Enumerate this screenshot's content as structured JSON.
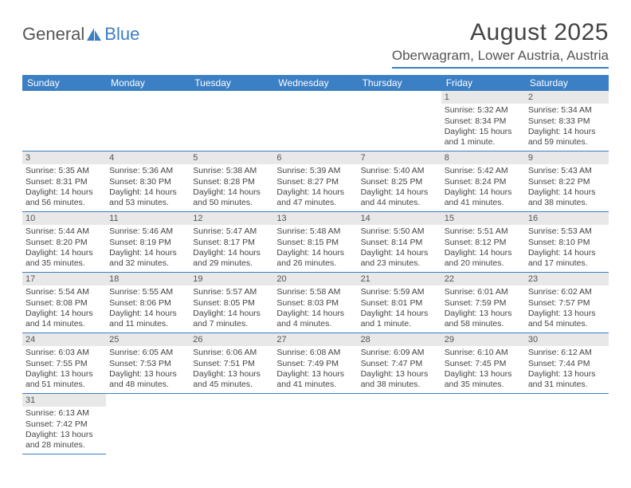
{
  "logo": {
    "text1": "General",
    "text2": "Blue"
  },
  "title": "August 2025",
  "location": "Oberwagram, Lower Austria, Austria",
  "colors": {
    "accent": "#3b7fc4",
    "headerText": "#ffffff",
    "bodyText": "#444444",
    "dayStripe": "#e8e8e8",
    "background": "#ffffff"
  },
  "weekdays": [
    "Sunday",
    "Monday",
    "Tuesday",
    "Wednesday",
    "Thursday",
    "Friday",
    "Saturday"
  ],
  "leadingBlanks": 5,
  "days": [
    {
      "n": "1",
      "sunrise": "5:32 AM",
      "sunset": "8:34 PM",
      "daylight": "15 hours and 1 minute."
    },
    {
      "n": "2",
      "sunrise": "5:34 AM",
      "sunset": "8:33 PM",
      "daylight": "14 hours and 59 minutes."
    },
    {
      "n": "3",
      "sunrise": "5:35 AM",
      "sunset": "8:31 PM",
      "daylight": "14 hours and 56 minutes."
    },
    {
      "n": "4",
      "sunrise": "5:36 AM",
      "sunset": "8:30 PM",
      "daylight": "14 hours and 53 minutes."
    },
    {
      "n": "5",
      "sunrise": "5:38 AM",
      "sunset": "8:28 PM",
      "daylight": "14 hours and 50 minutes."
    },
    {
      "n": "6",
      "sunrise": "5:39 AM",
      "sunset": "8:27 PM",
      "daylight": "14 hours and 47 minutes."
    },
    {
      "n": "7",
      "sunrise": "5:40 AM",
      "sunset": "8:25 PM",
      "daylight": "14 hours and 44 minutes."
    },
    {
      "n": "8",
      "sunrise": "5:42 AM",
      "sunset": "8:24 PM",
      "daylight": "14 hours and 41 minutes."
    },
    {
      "n": "9",
      "sunrise": "5:43 AM",
      "sunset": "8:22 PM",
      "daylight": "14 hours and 38 minutes."
    },
    {
      "n": "10",
      "sunrise": "5:44 AM",
      "sunset": "8:20 PM",
      "daylight": "14 hours and 35 minutes."
    },
    {
      "n": "11",
      "sunrise": "5:46 AM",
      "sunset": "8:19 PM",
      "daylight": "14 hours and 32 minutes."
    },
    {
      "n": "12",
      "sunrise": "5:47 AM",
      "sunset": "8:17 PM",
      "daylight": "14 hours and 29 minutes."
    },
    {
      "n": "13",
      "sunrise": "5:48 AM",
      "sunset": "8:15 PM",
      "daylight": "14 hours and 26 minutes."
    },
    {
      "n": "14",
      "sunrise": "5:50 AM",
      "sunset": "8:14 PM",
      "daylight": "14 hours and 23 minutes."
    },
    {
      "n": "15",
      "sunrise": "5:51 AM",
      "sunset": "8:12 PM",
      "daylight": "14 hours and 20 minutes."
    },
    {
      "n": "16",
      "sunrise": "5:53 AM",
      "sunset": "8:10 PM",
      "daylight": "14 hours and 17 minutes."
    },
    {
      "n": "17",
      "sunrise": "5:54 AM",
      "sunset": "8:08 PM",
      "daylight": "14 hours and 14 minutes."
    },
    {
      "n": "18",
      "sunrise": "5:55 AM",
      "sunset": "8:06 PM",
      "daylight": "14 hours and 11 minutes."
    },
    {
      "n": "19",
      "sunrise": "5:57 AM",
      "sunset": "8:05 PM",
      "daylight": "14 hours and 7 minutes."
    },
    {
      "n": "20",
      "sunrise": "5:58 AM",
      "sunset": "8:03 PM",
      "daylight": "14 hours and 4 minutes."
    },
    {
      "n": "21",
      "sunrise": "5:59 AM",
      "sunset": "8:01 PM",
      "daylight": "14 hours and 1 minute."
    },
    {
      "n": "22",
      "sunrise": "6:01 AM",
      "sunset": "7:59 PM",
      "daylight": "13 hours and 58 minutes."
    },
    {
      "n": "23",
      "sunrise": "6:02 AM",
      "sunset": "7:57 PM",
      "daylight": "13 hours and 54 minutes."
    },
    {
      "n": "24",
      "sunrise": "6:03 AM",
      "sunset": "7:55 PM",
      "daylight": "13 hours and 51 minutes."
    },
    {
      "n": "25",
      "sunrise": "6:05 AM",
      "sunset": "7:53 PM",
      "daylight": "13 hours and 48 minutes."
    },
    {
      "n": "26",
      "sunrise": "6:06 AM",
      "sunset": "7:51 PM",
      "daylight": "13 hours and 45 minutes."
    },
    {
      "n": "27",
      "sunrise": "6:08 AM",
      "sunset": "7:49 PM",
      "daylight": "13 hours and 41 minutes."
    },
    {
      "n": "28",
      "sunrise": "6:09 AM",
      "sunset": "7:47 PM",
      "daylight": "13 hours and 38 minutes."
    },
    {
      "n": "29",
      "sunrise": "6:10 AM",
      "sunset": "7:45 PM",
      "daylight": "13 hours and 35 minutes."
    },
    {
      "n": "30",
      "sunrise": "6:12 AM",
      "sunset": "7:44 PM",
      "daylight": "13 hours and 31 minutes."
    },
    {
      "n": "31",
      "sunrise": "6:13 AM",
      "sunset": "7:42 PM",
      "daylight": "13 hours and 28 minutes."
    }
  ],
  "labels": {
    "sunrise": "Sunrise: ",
    "sunset": "Sunset: ",
    "daylight": "Daylight: "
  }
}
